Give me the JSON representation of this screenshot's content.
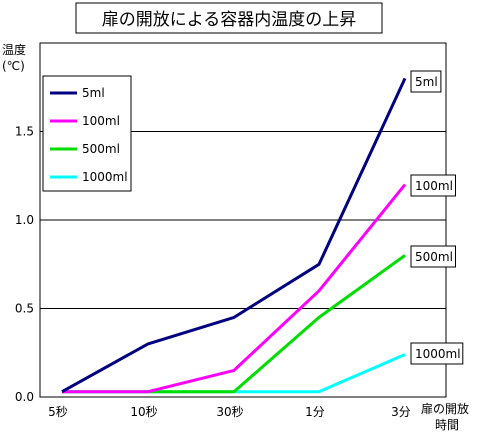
{
  "chart_data": {
    "type": "line",
    "title": "扉の開放による容器内温度の上昇",
    "ylabel_line1": "温度",
    "ylabel_line2": "(℃)",
    "xlabel_line1": "扉の開放",
    "xlabel_line2": "時間",
    "categories": [
      "5秒",
      "10秒",
      "30秒",
      "1分",
      "3分"
    ],
    "ylim": [
      0,
      2.0
    ],
    "yticks": [
      "0.0",
      "0.5",
      "1.0",
      "1.5"
    ],
    "grid": true,
    "legend_placement": "top-left",
    "series": [
      {
        "name": "5ml",
        "color": "#000080",
        "values": [
          0.03,
          0.3,
          0.45,
          0.75,
          1.8
        ]
      },
      {
        "name": "100ml",
        "color": "#ff00ff",
        "values": [
          0.03,
          0.03,
          0.15,
          0.6,
          1.2
        ]
      },
      {
        "name": "500ml",
        "color": "#00dd00",
        "values": [
          0.03,
          0.03,
          0.03,
          0.45,
          0.8
        ]
      },
      {
        "name": "1000ml",
        "color": "#00ffff",
        "values": [
          0.03,
          0.03,
          0.03,
          0.03,
          0.24
        ]
      }
    ]
  }
}
